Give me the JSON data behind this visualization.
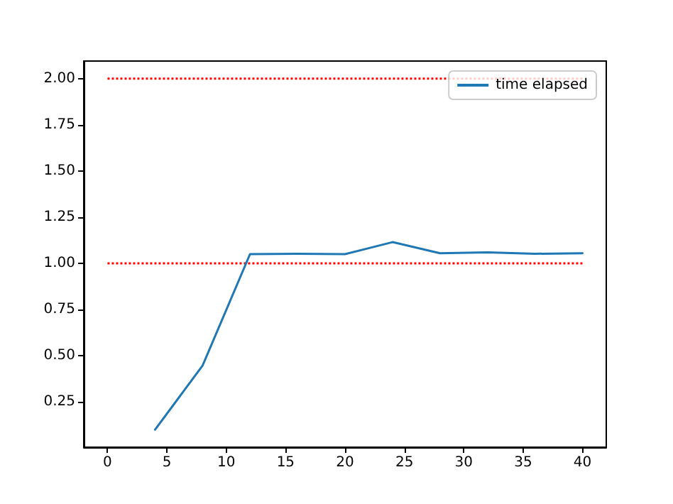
{
  "chart_data": {
    "type": "line",
    "x": [
      4,
      8,
      12,
      16,
      20,
      24,
      28,
      32,
      36,
      40
    ],
    "series": [
      {
        "name": "time elapsed",
        "color": "#1f77b4",
        "values": [
          0.1,
          0.446,
          1.05,
          1.052,
          1.05,
          1.115,
          1.055,
          1.06,
          1.052,
          1.055
        ]
      }
    ],
    "xlim": [
      -2,
      42
    ],
    "xticks": [
      0,
      5,
      10,
      15,
      20,
      25,
      30,
      35,
      40
    ],
    "ylim": [
      0.005,
      2.095
    ],
    "yticks": [
      0.25,
      {
        "value": 0.5,
        "label": "0.50"
      },
      0.75,
      {
        "value": 1,
        "label": "1.00"
      },
      1.25,
      {
        "value": 1.5,
        "label": "1.50"
      },
      1.75,
      {
        "value": 2,
        "label": "2.00"
      }
    ],
    "ref_lines": [
      {
        "axis": "y",
        "value": 2,
        "color": "#ff0000",
        "line_style": "dotted"
      },
      {
        "axis": "y",
        "value": 1,
        "color": "#ff0000",
        "line_style": "dotted"
      }
    ],
    "grid": false,
    "legend": "top right",
    "marker": "none",
    "line_style": "solid"
  }
}
